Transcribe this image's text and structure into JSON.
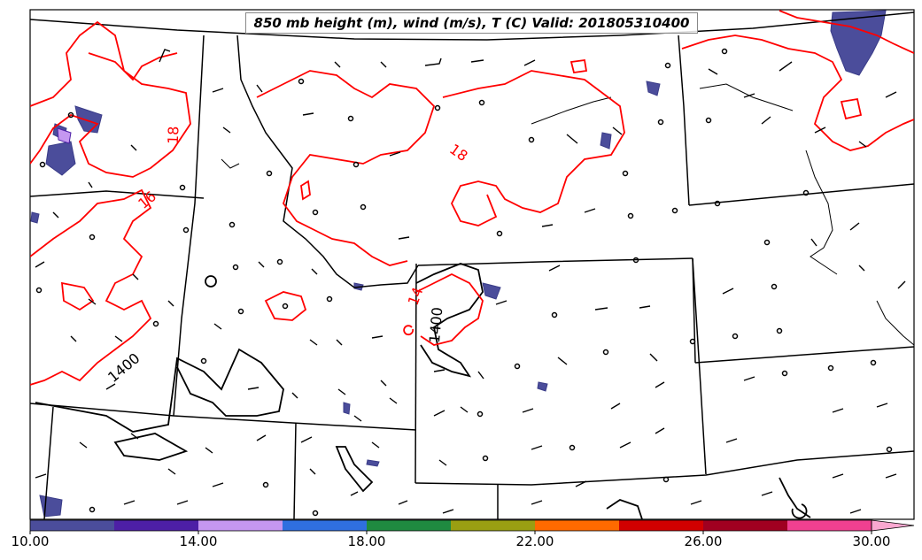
{
  "title": "850 mb height (m), wind (m/s), T (C) Valid: 201805310400",
  "contour_labels": {
    "temp": [
      "18",
      "18",
      "16",
      "14"
    ],
    "height": [
      "1400",
      "1400"
    ]
  },
  "colorbar": {
    "ticks": [
      "10.00",
      "14.00",
      "18.00",
      "22.00",
      "26.00",
      "30.00"
    ],
    "bins": [
      {
        "range": [
          10,
          12
        ],
        "color": "#4b4d9b"
      },
      {
        "range": [
          12,
          14
        ],
        "color": "#4d1fa6"
      },
      {
        "range": [
          14,
          16
        ],
        "color": "#c597f0"
      },
      {
        "range": [
          16,
          18
        ],
        "color": "#2f6fe0"
      },
      {
        "range": [
          18,
          20
        ],
        "color": "#1f8a40"
      },
      {
        "range": [
          20,
          22
        ],
        "color": "#9a9f12"
      },
      {
        "range": [
          22,
          24
        ],
        "color": "#ff6a00"
      },
      {
        "range": [
          24,
          26
        ],
        "color": "#d10000"
      },
      {
        "range": [
          26,
          28
        ],
        "color": "#a00020"
      },
      {
        "range": [
          28,
          30
        ],
        "color": "#f04090"
      },
      {
        "range": [
          30,
          32
        ],
        "color": "#f9a8d0"
      }
    ]
  },
  "colors": {
    "temperature_contour": "#ff0000",
    "height_contour": "#000000",
    "shading": "#4b4d9b"
  }
}
